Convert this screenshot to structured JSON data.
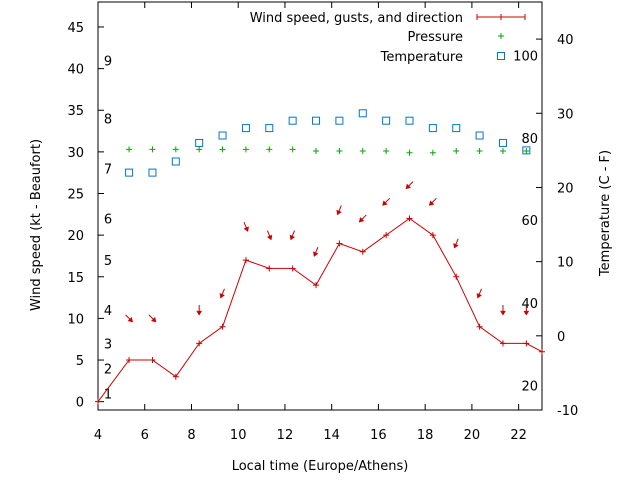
{
  "chart_data": {
    "type": "line",
    "xlabel": "Local time (Europe/Athens)",
    "ylabel_left": "Wind speed (kt - Beaufort)",
    "ylabel_right": "Temperature (C - F)",
    "xlim": [
      4,
      23
    ],
    "ylim_left": [
      -1,
      48
    ],
    "ylim_right": [
      -10,
      45
    ],
    "grid": false,
    "legend_position": "top-right",
    "x_ticks": [
      4,
      6,
      8,
      10,
      12,
      14,
      16,
      18,
      20,
      22
    ],
    "y_left_ticks": [
      0,
      5,
      10,
      15,
      20,
      25,
      30,
      35,
      40,
      45
    ],
    "y_right_ticks": [
      -10,
      0,
      10,
      20,
      30,
      40
    ],
    "beaufort_labels": [
      {
        "label": "1",
        "kt": 1
      },
      {
        "label": "2",
        "kt": 4
      },
      {
        "label": "3",
        "kt": 7
      },
      {
        "label": "4",
        "kt": 11
      },
      {
        "label": "5",
        "kt": 17
      },
      {
        "label": "6",
        "kt": 22
      },
      {
        "label": "7",
        "kt": 28
      },
      {
        "label": "8",
        "kt": 34
      },
      {
        "label": "9",
        "kt": 41
      }
    ],
    "fahrenheit_labels": [
      {
        "label": "20",
        "c": -6.7
      },
      {
        "label": "40",
        "c": 4.4
      },
      {
        "label": "60",
        "c": 15.6
      },
      {
        "label": "80",
        "c": 26.7
      },
      {
        "label": "100",
        "c": 37.8
      }
    ],
    "series": [
      {
        "name": "Wind speed, gusts, and direction",
        "color": "#cc0000",
        "x": [
          4.0,
          5.33,
          6.33,
          7.33,
          8.33,
          9.33,
          10.33,
          11.33,
          12.33,
          13.33,
          14.33,
          15.33,
          16.33,
          17.33,
          18.33,
          19.33,
          20.33,
          21.33,
          22.33,
          23.0
        ],
        "values": [
          0,
          5,
          5,
          3,
          7,
          9,
          17,
          16,
          16,
          14,
          19,
          18,
          20,
          22,
          20,
          15,
          9,
          7,
          7,
          6
        ]
      },
      {
        "name": "Pressure",
        "color": "#00aa00",
        "x": [
          5.33,
          6.33,
          7.33,
          8.33,
          9.33,
          10.33,
          11.33,
          12.33,
          13.33,
          14.33,
          15.33,
          16.33,
          17.33,
          18.33,
          19.33,
          20.33,
          21.33,
          22.33
        ],
        "values": [
          30.3,
          30.3,
          30.3,
          30.3,
          30.3,
          30.3,
          30.3,
          30.3,
          30.1,
          30.1,
          30.1,
          30.1,
          29.9,
          29.9,
          30.1,
          30.1,
          30.1,
          30.1
        ]
      },
      {
        "name": "Temperature",
        "color": "#0077cc",
        "x": [
          5.33,
          6.33,
          7.33,
          8.33,
          9.33,
          10.33,
          11.33,
          12.33,
          13.33,
          14.33,
          15.33,
          16.33,
          17.33,
          18.33,
          19.33,
          20.33,
          21.33,
          22.33
        ],
        "values": [
          22.0,
          22.0,
          23.5,
          26.0,
          27.0,
          28.0,
          28.0,
          29.0,
          29.0,
          29.0,
          30.0,
          29.0,
          29.0,
          28.0,
          28.0,
          27.0,
          26.0,
          25.0
        ]
      }
    ],
    "wind_arrows": {
      "color": "#cc0000",
      "x": [
        5.33,
        6.33,
        8.33,
        9.33,
        10.33,
        11.33,
        12.33,
        13.33,
        14.33,
        15.33,
        16.33,
        17.33,
        18.33,
        19.33,
        20.33,
        21.33,
        22.33
      ],
      "kt": [
        10,
        10,
        11,
        13,
        21,
        20,
        20,
        18,
        23,
        22,
        24,
        26,
        24,
        19,
        13,
        11,
        11
      ],
      "dir": [
        "NW",
        "NW",
        "N",
        "NNE",
        "NNW",
        "NNW",
        "NNE",
        "NNE",
        "NNE",
        "NE",
        "NE",
        "NE",
        "NE",
        "NNE",
        "NNE",
        "N",
        "N"
      ]
    }
  }
}
